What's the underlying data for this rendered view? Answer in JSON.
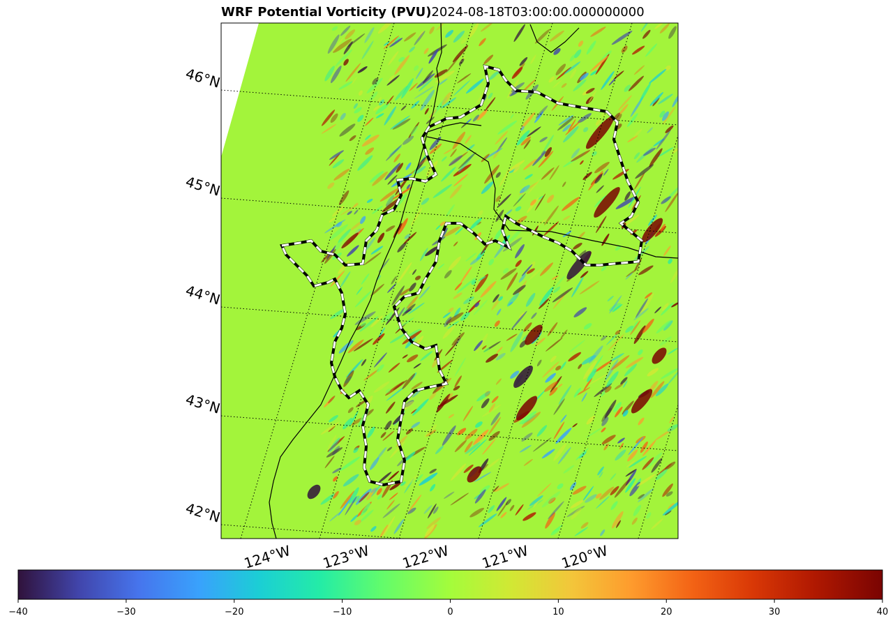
{
  "title": {
    "variable": "WRF Potential Vorticity (PVU)",
    "time": "2024-08-18T03:00:00.000000000"
  },
  "map": {
    "lat_labels": [
      "46°N",
      "45°N",
      "44°N",
      "43°N",
      "42°N"
    ],
    "lon_labels": [
      "124°W",
      "123°W",
      "122°W",
      "121°W",
      "120°W"
    ],
    "background_color": "#a3f43b",
    "coastline_color": "#000000",
    "contour_style": "black-white dashed outline"
  },
  "colorbar": {
    "colormap": "turbo",
    "min": -40,
    "max": 40,
    "ticks": [
      "−40",
      "−30",
      "−20",
      "−10",
      "0",
      "10",
      "20",
      "30",
      "40"
    ]
  },
  "chart_data": {
    "type": "heatmap",
    "title": "WRF Potential Vorticity (PVU)2024-08-18T03:00:00.000000000",
    "value_range": [
      -40,
      40
    ],
    "colormap": "turbo",
    "lat_ticks": [
      "46°N",
      "45°N",
      "44°N",
      "43°N",
      "42°N"
    ],
    "lon_ticks": [
      "124°W",
      "123°W",
      "122°W",
      "121°W",
      "120°W"
    ],
    "colorbar_ticks": [
      -40,
      -30,
      -20,
      -10,
      0,
      10,
      20,
      30,
      40
    ]
  }
}
